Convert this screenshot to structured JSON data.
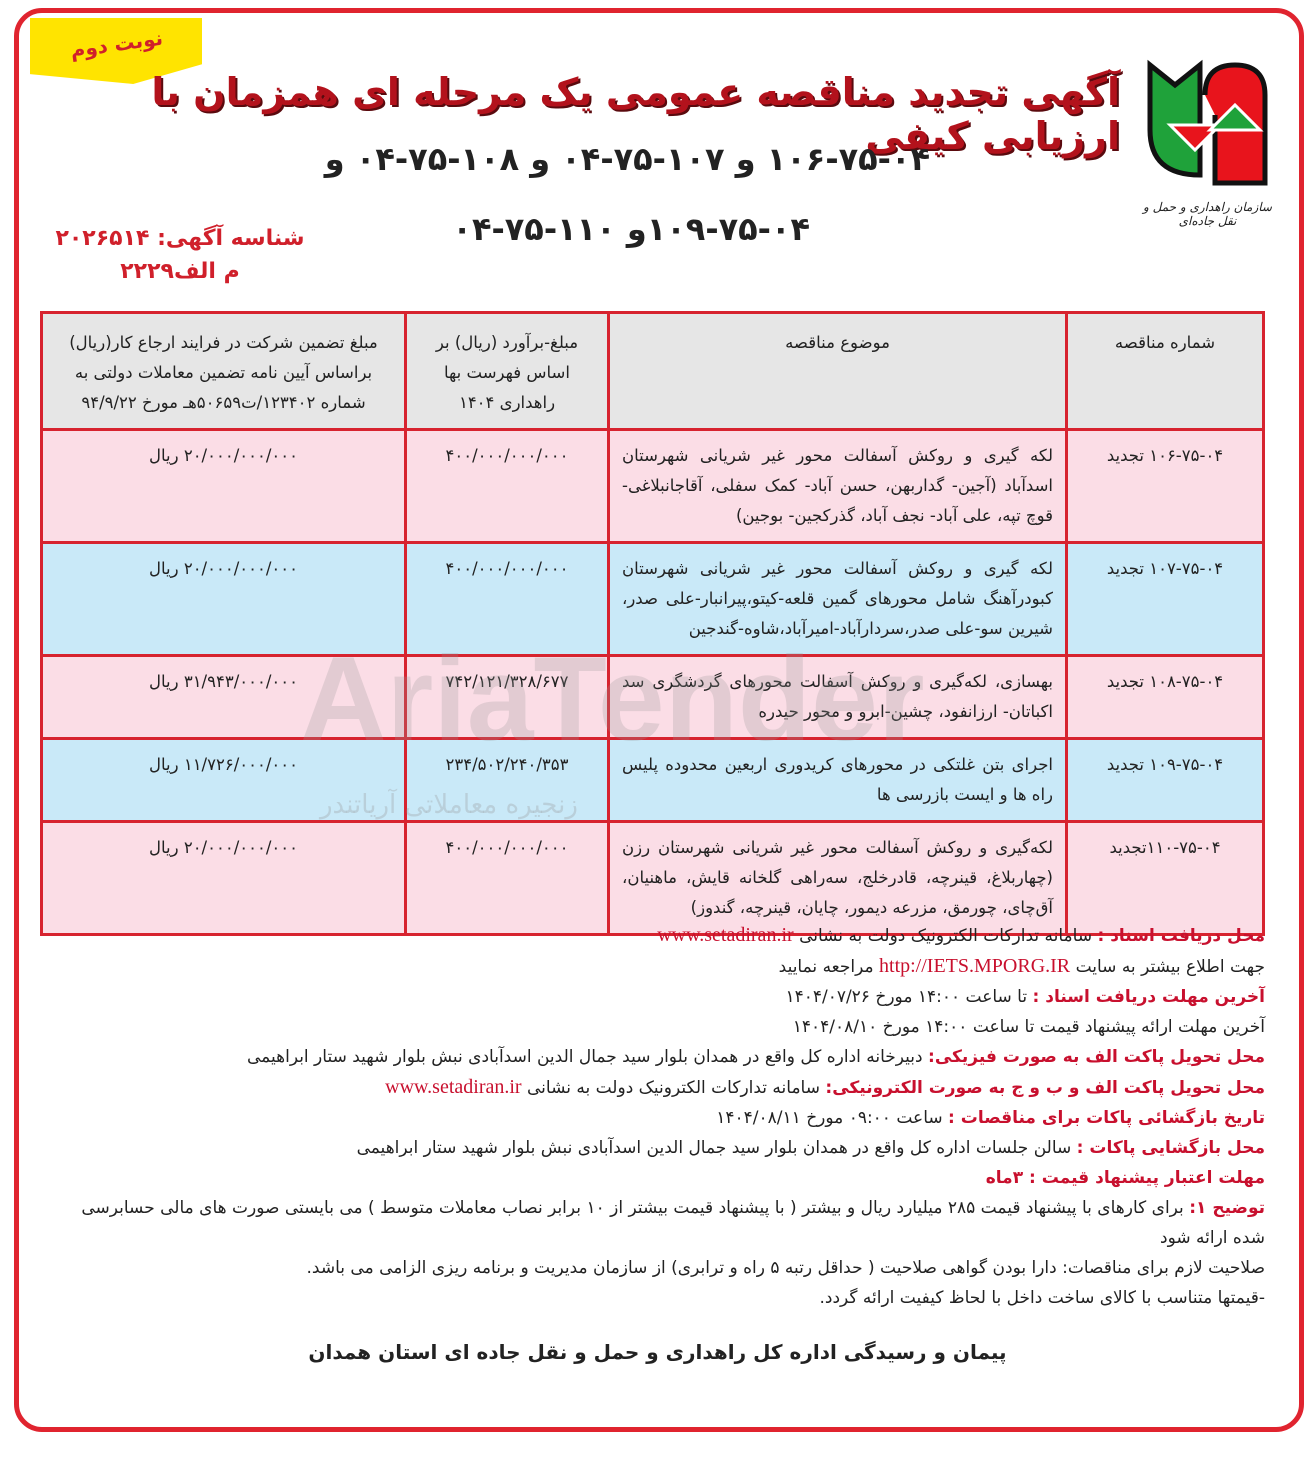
{
  "badge": "نوبت دوم",
  "logo": {
    "caption": "سازمان راهداری و حمل و نقل جاده‌ای",
    "colors": {
      "green": "#1fa23a",
      "red": "#e8141c"
    }
  },
  "title": "آگهی تجدید مناقصه عمومی یک مرحله ای همزمان با ارزیابی کیفی",
  "tender_numbers_line1": "۱۰۶-۷۵-۰۴ و ۱۰۷-۷۵-۰۴ و ۱۰۸-۷۵-۰۴ و",
  "tender_numbers_line2": "۱۰۹-۷۵-۰۴و ۱۱۰-۷۵-۰۴",
  "ad_id": {
    "line1": "شناسه آگهی: ۲۰۲۶۵۱۴",
    "line2": "م الف۲۲۲۹"
  },
  "watermark": {
    "text": "AriaTender",
    "subtitle": "زنجیره معاملاتی آریاتندر"
  },
  "table": {
    "headers": [
      "شماره مناقصه",
      "موضوع مناقصه",
      "مبلغ-برآورد (ریال) بر اساس فهرست بها راهداری ۱۴۰۴",
      "مبلغ تضمین شرکت در فرایند ارجاع کار(ریال) براساس آیین نامه تضمین معاملات دولتی به شماره ۱۲۳۴۰۲/ت۵۰۶۵۹هـ مورخ ۹۴/۹/۲۲"
    ],
    "rows": [
      {
        "number": "۱۰۶-۷۵-۰۴ تجدید",
        "subject": "لکه گیری و روکش آسفالت محور غیر شریانی شهرستان اسدآباد (آجین- گداربهن، حسن آباد- کمک سفلی، آقاجانبلاغی- قوچ تپه، علی آباد- نجف آباد، گذرکجین- بوجین)",
        "estimate": "۴۰۰/۰۰۰/۰۰۰/۰۰۰",
        "guarantee": "۲۰/۰۰۰/۰۰۰/۰۰۰ ریال"
      },
      {
        "number": "۱۰۷-۷۵-۰۴ تجدید",
        "subject": "لکه گیری و روکش آسفالت محور غیر شریانی شهرستان کبودرآهنگ شامل محورهای گمین قلعه-کیتو،پیرانبار-علی صدر، شیرین سو-علی صدر،سردارآباد-امیرآباد،شاوه-گندجین",
        "estimate": "۴۰۰/۰۰۰/۰۰۰/۰۰۰",
        "guarantee": "۲۰/۰۰۰/۰۰۰/۰۰۰ ریال"
      },
      {
        "number": "۱۰۸-۷۵-۰۴ تجدید",
        "subject": "بهسازی، لکه‌گیری و روکش آسفالت محورهای گردشگری سد اکباتان- ارزانفود، چشین-ابرو و محور حیدره",
        "estimate": "۷۴۲/۱۲۱/۳۲۸/۶۷۷",
        "guarantee": "۳۱/۹۴۳/۰۰۰/۰۰۰ ریال"
      },
      {
        "number": "۱۰۹-۷۵-۰۴ تجدید",
        "subject": "اجرای بتن غلتکی در محورهای کریدوری اربعین محدوده پلیس راه ها و ایست بازرسی ها",
        "estimate": "۲۳۴/۵۰۲/۲۴۰/۳۵۳",
        "guarantee": "۱۱/۷۲۶/۰۰۰/۰۰۰ ریال"
      },
      {
        "number": "۱۱۰-۷۵-۰۴تجدید",
        "subject": "لکه‌گیری و روکش آسفالت محور غیر شریانی شهرستان رزن (چهاربلاغ، قینرچه، قادرخلج، سه‌راهی گلخانه قایش، ماهنیان، آق‌چای، چورمق، مزرعه دیمور، چایان، قینرچه، گندوز)",
        "estimate": "۴۰۰/۰۰۰/۰۰۰/۰۰۰",
        "guarantee": "۲۰/۰۰۰/۰۰۰/۰۰۰ ریال"
      }
    ]
  },
  "info": {
    "l1_key": "محل دریافت اسناد :",
    "l1_val": "سامانه تدارکات الکترونیک دولت به نشانی",
    "l1_url": "www.setadiran.ir",
    "l2_a": "جهت اطلاع بیشتر به سایت",
    "l2_url": "http://IETS.MPORG.IR",
    "l2_b": "مراجعه نمایید",
    "l3_key": "آخرین مهلت دریافت اسناد :",
    "l3_val": "تا ساعت ۱۴:۰۰ مورخ ۱۴۰۴/۰۷/۲۶",
    "l4": "آخرین مهلت ارائه پیشنهاد قیمت تا ساعت ۱۴:۰۰ مورخ ۱۴۰۴/۰۸/۱۰",
    "l5_key": "محل تحویل پاکت الف به صورت فیزیکی:",
    "l5_val": "دبیرخانه اداره کل واقع در همدان بلوار سید جمال الدین اسدآبادی نبش بلوار شهید ستار ابراهیمی",
    "l6_key": "محل تحویل پاکت الف و ب و ج به صورت الکترونیکی:",
    "l6_val": "سامانه تدارکات الکترونیک دولت به نشانی",
    "l6_url": "www.setadiran.ir",
    "l7_key": "تاریخ بازگشائی پاکات برای مناقصات :",
    "l7_val": "ساعت ۰۹:۰۰ مورخ ۱۴۰۴/۰۸/۱۱",
    "l8_key": "محل بازگشایی پاکات :",
    "l8_val": "سالن جلسات اداره کل واقع در همدان بلوار سید جمال الدین اسدآبادی نبش بلوار شهید ستار ابراهیمی",
    "l9_key": "مهلت اعتبار پیشنهاد قیمت : ۳ماه",
    "l10_key": "توضیح ۱:",
    "l10_val": "برای کارهای با پیشنهاد قیمت ۲۸۵ میلیارد ریال و بیشتر ( با پیشنهاد قیمت بیشتر از ۱۰ برابر نصاب معاملات متوسط ) می بایستی صورت های مالی حسابرسی شده ارائه شود",
    "l11": "صلاحیت لازم برای مناقصات: دارا بودن گواهی صلاحیت ( حداقل رتبه ۵ راه و ترابری) از سازمان مدیریت و برنامه ریزی الزامی می باشد.",
    "l12": "-قیمتها متناسب با کالای ساخت داخل با لحاظ کیفیت ارائه گردد."
  },
  "footer": "پیمان و رسیدگی اداره کل راهداری و حمل و نقل جاده ای استان همدان"
}
